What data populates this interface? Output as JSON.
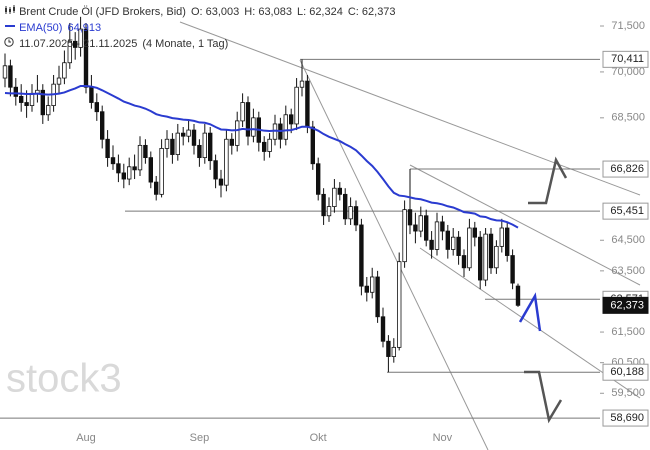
{
  "chart_data": {
    "type": "candlestick",
    "title": "Brent Crude Öl (JFD Brokers, Bid)",
    "info": [
      "O: 63,003",
      "H: 63,083",
      "L: 62,324",
      "C: 62,373"
    ],
    "period": "11.07.2025 - 21.11.2025",
    "range": "(4 Monate, 1 Tag)",
    "watermark": "stock3",
    "categories": [
      null,
      null,
      null,
      null,
      null,
      null,
      null,
      null,
      null,
      null,
      null,
      null,
      null,
      null,
      null,
      "Aug",
      null,
      null,
      null,
      null,
      null,
      null,
      null,
      null,
      null,
      null,
      null,
      null,
      null,
      null,
      null,
      null,
      null,
      null,
      null,
      null,
      "Sep",
      null,
      null,
      null,
      null,
      null,
      null,
      null,
      null,
      null,
      null,
      null,
      null,
      null,
      null,
      null,
      null,
      null,
      null,
      null,
      null,
      null,
      "Okt",
      null,
      null,
      null,
      null,
      null,
      null,
      null,
      null,
      null,
      null,
      null,
      null,
      null,
      null,
      null,
      null,
      null,
      null,
      null,
      null,
      null,
      null,
      "Nov",
      null,
      null,
      null,
      null,
      null,
      null,
      null,
      null,
      null,
      null,
      null,
      null,
      null,
      null
    ],
    "candles": [
      [
        69800,
        70600,
        69500,
        70200
      ],
      [
        70200,
        70400,
        69200,
        69500
      ],
      [
        69500,
        69800,
        68900,
        69200
      ],
      [
        69200,
        69600,
        68700,
        69000
      ],
      [
        69000,
        69400,
        68500,
        68900
      ],
      [
        68900,
        69600,
        68700,
        69300
      ],
      [
        69300,
        69900,
        69000,
        69400
      ],
      [
        69400,
        69600,
        68300,
        68600
      ],
      [
        68600,
        69200,
        68400,
        68900
      ],
      [
        68900,
        69900,
        68700,
        69600
      ],
      [
        69600,
        70200,
        69300,
        69800
      ],
      [
        69800,
        70700,
        69600,
        70300
      ],
      [
        70300,
        71600,
        70100,
        71000
      ],
      [
        71000,
        71300,
        70400,
        70800
      ],
      [
        70800,
        71800,
        70500,
        71400
      ],
      [
        71400,
        71600,
        69300,
        69500
      ],
      [
        69500,
        69900,
        68800,
        69000
      ],
      [
        69000,
        69300,
        68400,
        68700
      ],
      [
        68700,
        68900,
        67500,
        67800
      ],
      [
        67800,
        68100,
        66900,
        67200
      ],
      [
        67200,
        67600,
        66800,
        67000
      ],
      [
        67000,
        67300,
        66400,
        66700
      ],
      [
        66700,
        67000,
        66200,
        66500
      ],
      [
        66500,
        67200,
        66300,
        66900
      ],
      [
        66900,
        67300,
        66500,
        66800
      ],
      [
        66800,
        67900,
        66600,
        67600
      ],
      [
        67600,
        67800,
        67000,
        67200
      ],
      [
        67200,
        67400,
        66200,
        66400
      ],
      [
        66400,
        66600,
        65800,
        66000
      ],
      [
        66000,
        67800,
        65900,
        67500
      ],
      [
        67500,
        68100,
        67200,
        67800
      ],
      [
        67800,
        68000,
        67000,
        67300
      ],
      [
        67300,
        68300,
        67100,
        68000
      ],
      [
        68000,
        68200,
        67600,
        67900
      ],
      [
        67900,
        68400,
        67700,
        68100
      ],
      [
        68100,
        68300,
        67300,
        67600
      ],
      [
        67600,
        67800,
        66900,
        67200
      ],
      [
        67200,
        68300,
        67000,
        68000
      ],
      [
        68000,
        68200,
        66800,
        67100
      ],
      [
        67100,
        67300,
        66200,
        66500
      ],
      [
        66500,
        66800,
        65900,
        66300
      ],
      [
        66300,
        68100,
        66100,
        67800
      ],
      [
        67800,
        68000,
        67300,
        67600
      ],
      [
        67600,
        68700,
        67400,
        68400
      ],
      [
        68400,
        69300,
        68200,
        69000
      ],
      [
        69000,
        69200,
        67600,
        67900
      ],
      [
        67900,
        68800,
        67700,
        68500
      ],
      [
        68500,
        68700,
        67400,
        67700
      ],
      [
        67700,
        67900,
        67100,
        67400
      ],
      [
        67400,
        68000,
        67200,
        67800
      ],
      [
        67800,
        68600,
        67600,
        68300
      ],
      [
        68300,
        68500,
        67500,
        67800
      ],
      [
        67800,
        68900,
        67600,
        68600
      ],
      [
        68600,
        68800,
        68000,
        68300
      ],
      [
        68300,
        69800,
        68100,
        69500
      ],
      [
        69500,
        70411,
        69200,
        69700
      ],
      [
        69700,
        69900,
        68000,
        68200
      ],
      [
        68200,
        68400,
        66800,
        67000
      ],
      [
        67000,
        67200,
        65800,
        66000
      ],
      [
        66000,
        66200,
        65000,
        65300
      ],
      [
        65300,
        65900,
        65100,
        65600
      ],
      [
        65600,
        66500,
        65400,
        66200
      ],
      [
        66200,
        66400,
        65800,
        66000
      ],
      [
        66000,
        66200,
        65000,
        65200
      ],
      [
        65200,
        65900,
        65000,
        65600
      ],
      [
        65600,
        65800,
        64800,
        65000
      ],
      [
        65000,
        65200,
        62700,
        63000
      ],
      [
        63000,
        63300,
        62500,
        62800
      ],
      [
        62800,
        63600,
        62600,
        63300
      ],
      [
        63300,
        63500,
        61800,
        62000
      ],
      [
        62000,
        62300,
        61000,
        61200
      ],
      [
        61200,
        61400,
        60188,
        60700
      ],
      [
        60700,
        61300,
        60500,
        61000
      ],
      [
        61000,
        64100,
        60900,
        63800
      ],
      [
        63800,
        65800,
        63600,
        65500
      ],
      [
        65500,
        66826,
        64700,
        65000
      ],
      [
        65000,
        65400,
        64400,
        64800
      ],
      [
        64800,
        65600,
        64600,
        65300
      ],
      [
        65300,
        65500,
        64300,
        64500
      ],
      [
        64500,
        64800,
        63900,
        64200
      ],
      [
        64200,
        65400,
        64000,
        65100
      ],
      [
        65100,
        65300,
        64500,
        64800
      ],
      [
        64800,
        65000,
        63900,
        64200
      ],
      [
        64200,
        64900,
        64000,
        64600
      ],
      [
        64600,
        64800,
        63700,
        64000
      ],
      [
        64000,
        64200,
        63300,
        63600
      ],
      [
        63600,
        65200,
        63500,
        64900
      ],
      [
        64900,
        65100,
        64300,
        64600
      ],
      [
        64600,
        64800,
        62900,
        63200
      ],
      [
        63200,
        64900,
        63000,
        64700
      ],
      [
        64700,
        64900,
        63400,
        63600
      ],
      [
        63600,
        64500,
        63400,
        64300
      ],
      [
        64300,
        65200,
        64100,
        64900
      ],
      [
        64900,
        65100,
        63800,
        64000
      ],
      [
        64000,
        64200,
        62900,
        63100
      ],
      [
        63003,
        63083,
        62324,
        62373
      ]
    ],
    "series": [
      {
        "name": "EMA(50)",
        "color": "#2a3bd0",
        "value_label": "64,913",
        "values": [
          69310,
          69300,
          69300,
          69290,
          69280,
          69280,
          69290,
          69270,
          69260,
          69270,
          69290,
          69330,
          69400,
          69460,
          69540,
          69540,
          69520,
          69480,
          69400,
          69310,
          69220,
          69130,
          69030,
          68970,
          68900,
          68860,
          68800,
          68720,
          68620,
          68570,
          68540,
          68490,
          68470,
          68440,
          68430,
          68400,
          68350,
          68340,
          68290,
          68200,
          68120,
          68110,
          68090,
          68100,
          68140,
          68120,
          68130,
          68110,
          68080,
          68070,
          68080,
          68070,
          68090,
          68100,
          68150,
          68210,
          68210,
          68160,
          68080,
          67970,
          67880,
          67810,
          67740,
          67640,
          67550,
          67440,
          67270,
          67090,
          66930,
          66730,
          66500,
          66260,
          66050,
          65960,
          65940,
          65900,
          65860,
          65840,
          65790,
          65730,
          65710,
          65670,
          65610,
          65570,
          65500,
          65420,
          65400,
          65370,
          65280,
          65260,
          65190,
          65150,
          65140,
          65090,
          65010,
          64913
        ]
      }
    ],
    "ylim": [
      58300,
      72350
    ],
    "yticks": [
      {
        "value": 59500,
        "label": "59,500"
      },
      {
        "value": 60500,
        "label": "60,500"
      },
      {
        "value": 61500,
        "label": "61,500"
      },
      {
        "value": 63500,
        "label": "63,500"
      },
      {
        "value": 64500,
        "label": "64,500"
      },
      {
        "value": 68500,
        "label": "68,500"
      },
      {
        "value": 70000,
        "label": "70,000"
      },
      {
        "value": 71500,
        "label": "71,500"
      }
    ],
    "levels": [
      {
        "value": 70411,
        "label": "70,411"
      },
      {
        "value": 66826,
        "label": "66,826"
      },
      {
        "value": 65451,
        "label": "65,451"
      },
      {
        "value": 62571,
        "label": "62,571"
      },
      {
        "value": 60188,
        "label": "60,188"
      },
      {
        "value": 58690,
        "label": "58,690"
      },
      {
        "value": 62373,
        "label": "62,373",
        "style": "dark"
      }
    ]
  }
}
